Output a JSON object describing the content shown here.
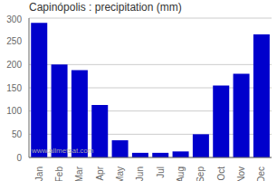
{
  "chart_data": {
    "type": "bar",
    "title": "Capinópolis : precipitation (mm)",
    "categories": [
      "Jan",
      "Feb",
      "Mar",
      "Apr",
      "May",
      "Jun",
      "Jul",
      "Aug",
      "Sep",
      "Oct",
      "Nov",
      "Dec"
    ],
    "values": [
      290,
      200,
      188,
      113,
      37,
      10,
      10,
      13,
      50,
      155,
      180,
      265
    ],
    "color": "#0000CC",
    "ylim": [
      0,
      300
    ],
    "yticks": [
      0,
      50,
      100,
      150,
      200,
      250,
      300
    ],
    "grid": true,
    "annotations": [
      "www.allmetsat.com"
    ]
  }
}
